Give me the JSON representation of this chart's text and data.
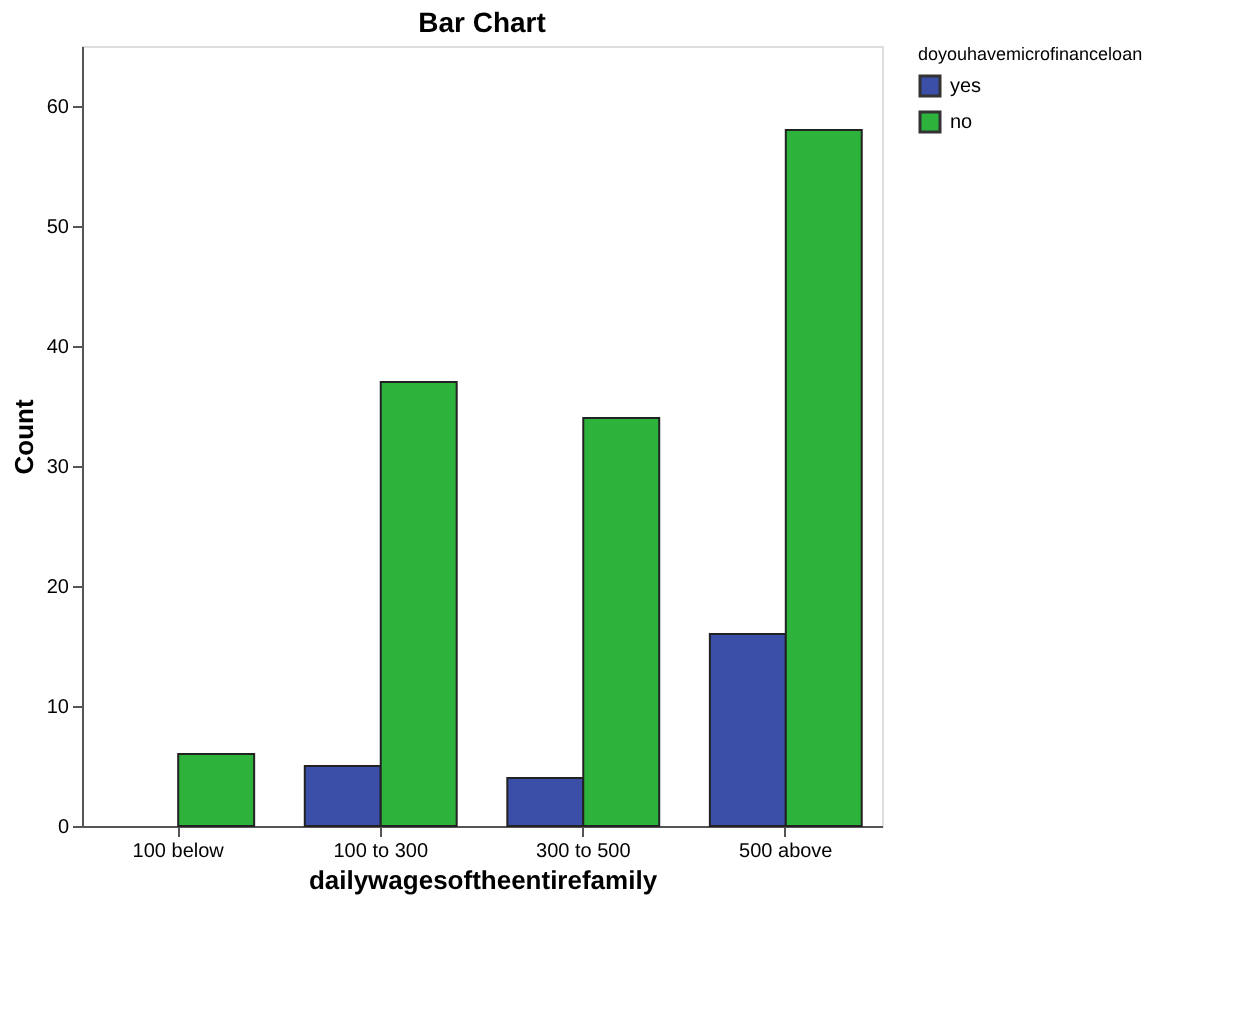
{
  "chart_data": {
    "type": "bar",
    "title": "Bar Chart",
    "xlabel": "dailywagesoftheentirefamily",
    "ylabel": "Count",
    "legend_title": "doyouhavemicrofinanceloan",
    "categories": [
      "100 below",
      "100 to 300",
      "300 to 500",
      "500 above"
    ],
    "series": [
      {
        "name": "yes",
        "color": "#3b4fa8",
        "values": [
          null,
          5,
          4,
          16
        ]
      },
      {
        "name": "no",
        "color": "#2db23c",
        "values": [
          6,
          37,
          34,
          58
        ]
      }
    ],
    "ylim": [
      0,
      65
    ],
    "yticks": [
      0,
      10,
      20,
      30,
      40,
      50,
      60
    ],
    "grid": false,
    "legend": "top right"
  }
}
